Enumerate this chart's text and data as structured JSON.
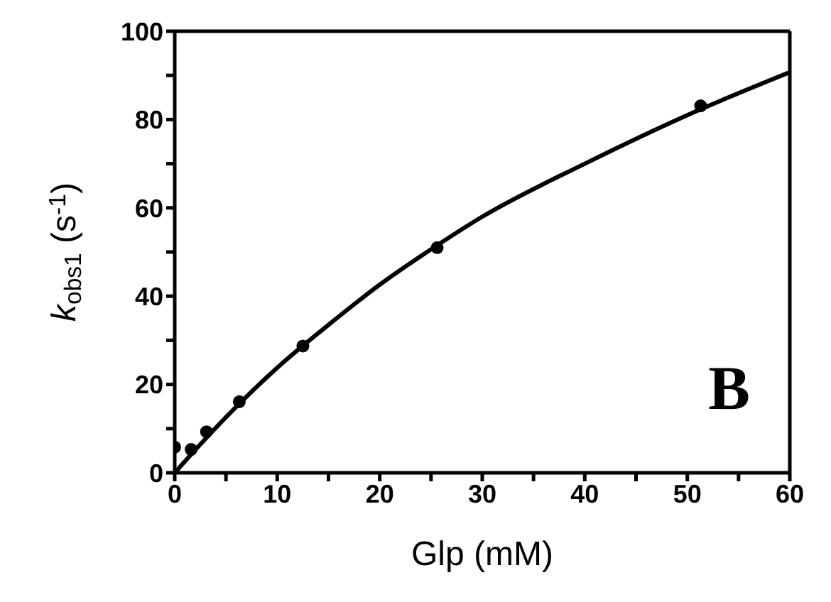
{
  "chart_data": {
    "type": "scatter",
    "xlabel": "Glp (mM)",
    "ylabel": "k$_{obs1}$ (s$^{-1}$)",
    "xlim": [
      0,
      60
    ],
    "xticks": [
      0,
      {
        "value": 5,
        "label": null
      },
      10,
      {
        "value": 15,
        "label": null
      },
      20,
      {
        "value": 25,
        "label": null
      },
      30,
      {
        "value": 35,
        "label": null
      },
      40,
      {
        "value": 45,
        "label": null
      },
      50,
      {
        "value": 55,
        "label": null
      },
      60
    ],
    "ylim": [
      0,
      100
    ],
    "yticks": [
      0,
      {
        "value": 10,
        "label": null
      },
      20,
      {
        "value": 30,
        "label": null
      },
      40,
      {
        "value": 50,
        "label": null
      },
      60,
      {
        "value": 70,
        "label": null
      },
      80,
      {
        "value": 90,
        "label": null
      },
      100
    ],
    "marker": "circle",
    "legend": false,
    "annotations": [
      "B"
    ],
    "series": [
      {
        "color": "#000000",
        "x": [
          0,
          1.6,
          3.1,
          6.3,
          12.5,
          25.6,
          51.3
        ],
        "values": [
          5.8,
          5.3,
          9.3,
          16.1,
          28.7,
          51,
          83.1
        ]
      },
      {
        "type": "line",
        "color": "#000000",
        "line_style": "solid",
        "marker": "none",
        "x": [
          0,
          2,
          5,
          10,
          15,
          20,
          25,
          30,
          40,
          50,
          60
        ],
        "values": [
          0,
          5.2,
          12.6,
          23.8,
          33.5,
          42.6,
          50.6,
          58,
          70,
          81,
          90.7
        ]
      }
    ]
  }
}
